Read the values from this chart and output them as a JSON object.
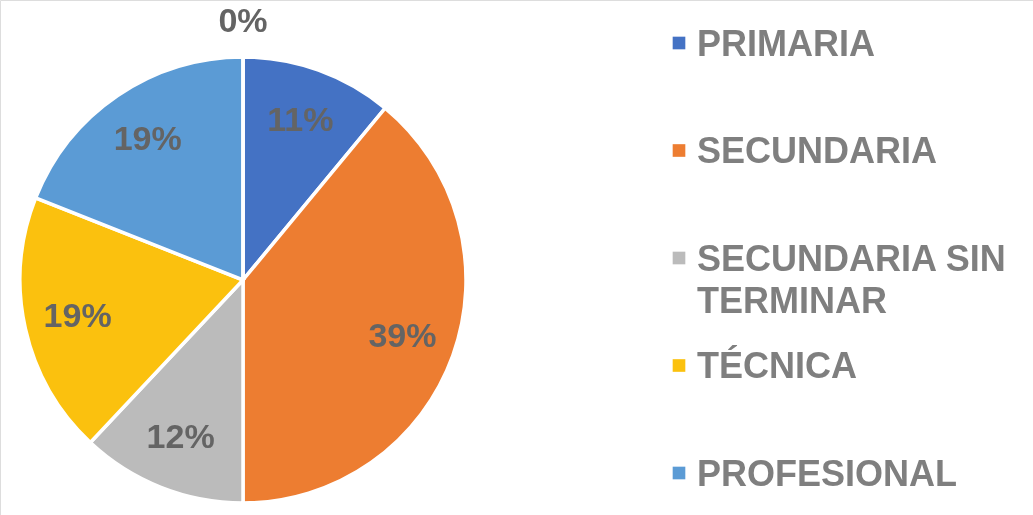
{
  "chart_data": {
    "type": "pie",
    "categories": [
      "PRIMARIA",
      "SECUNDARIA",
      "SECUNDARIA SIN TERMINAR",
      "TÉCNICA",
      "PROFESIONAL",
      null
    ],
    "values": [
      11,
      39,
      12,
      19,
      19,
      0
    ],
    "colors": [
      "#4472c4",
      "#ed7d31",
      "#bbbbbb",
      "#fbc10e",
      "#5b9bd5",
      "#70ad47"
    ],
    "value_labels": [
      "11%",
      "39%",
      "12%",
      "19%",
      "19%",
      "0%"
    ],
    "legend": "right"
  }
}
